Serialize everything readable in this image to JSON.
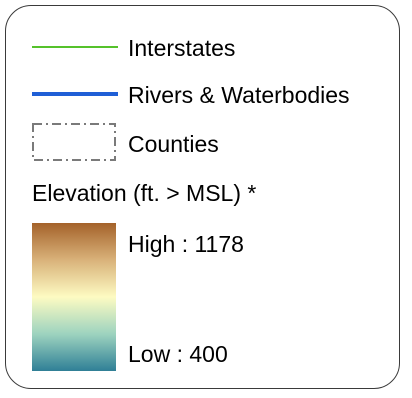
{
  "legend": {
    "items": [
      {
        "label": "Interstates",
        "symbol": "line",
        "color": "#55c22b"
      },
      {
        "label": "Rivers & Waterbodies",
        "symbol": "line",
        "color": "#1f5fd6"
      },
      {
        "label": "Counties",
        "symbol": "dash-dot-box",
        "color": "#7a7a7a"
      }
    ],
    "elevation": {
      "title": "Elevation (ft. > MSL) *",
      "high_label": "High : 1178",
      "low_label": "Low : 400",
      "colors": [
        "#a4622a",
        "#d9b27a",
        "#fdfbc2",
        "#9dd3bf",
        "#2f7f96"
      ]
    }
  }
}
